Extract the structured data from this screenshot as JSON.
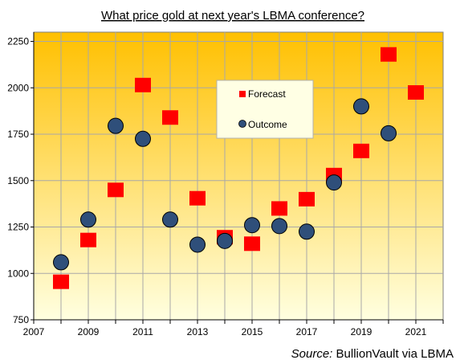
{
  "chart_data": {
    "type": "scatter",
    "title": "What price gold at next year's LBMA conference?",
    "xlabel": "",
    "ylabel": "",
    "xlim": [
      2007,
      2022
    ],
    "ylim": [
      750,
      2300
    ],
    "x_ticks": [
      "2007",
      "2009",
      "2011",
      "2013",
      "2015",
      "2017",
      "2019",
      "2021"
    ],
    "y_ticks": [
      "750",
      "1000",
      "1250",
      "1500",
      "1750",
      "2000",
      "2250"
    ],
    "grid": true,
    "legend_position": "center-top",
    "series": [
      {
        "name": "Forecast",
        "marker": "square",
        "color": "#ff0000",
        "points": [
          {
            "x": 2008,
            "y": 955
          },
          {
            "x": 2009,
            "y": 1180
          },
          {
            "x": 2010,
            "y": 1450
          },
          {
            "x": 2011,
            "y": 2015
          },
          {
            "x": 2012,
            "y": 1840
          },
          {
            "x": 2013,
            "y": 1405
          },
          {
            "x": 2014,
            "y": 1195
          },
          {
            "x": 2015,
            "y": 1160
          },
          {
            "x": 2016,
            "y": 1350
          },
          {
            "x": 2017,
            "y": 1400
          },
          {
            "x": 2018,
            "y": 1530
          },
          {
            "x": 2019,
            "y": 1660
          },
          {
            "x": 2020,
            "y": 2180
          },
          {
            "x": 2021,
            "y": 1975
          }
        ]
      },
      {
        "name": "Outcome",
        "marker": "circle",
        "color": "#2f4f7a",
        "points": [
          {
            "x": 2008,
            "y": 1060
          },
          {
            "x": 2009,
            "y": 1290
          },
          {
            "x": 2010,
            "y": 1795
          },
          {
            "x": 2011,
            "y": 1725
          },
          {
            "x": 2012,
            "y": 1290
          },
          {
            "x": 2013,
            "y": 1155
          },
          {
            "x": 2014,
            "y": 1175
          },
          {
            "x": 2015,
            "y": 1260
          },
          {
            "x": 2016,
            "y": 1255
          },
          {
            "x": 2017,
            "y": 1225
          },
          {
            "x": 2018,
            "y": 1490
          },
          {
            "x": 2019,
            "y": 1900
          },
          {
            "x": 2020,
            "y": 1755
          }
        ]
      }
    ]
  },
  "source": {
    "label": "Source:",
    "text": " BullionVault via LBMA"
  },
  "colors": {
    "gradient_top": "#ffc000",
    "gradient_bottom": "#ffffe0",
    "grid": "#a8a8a8",
    "forecast": "#ff0000",
    "outcome": "#2f4f7a"
  }
}
